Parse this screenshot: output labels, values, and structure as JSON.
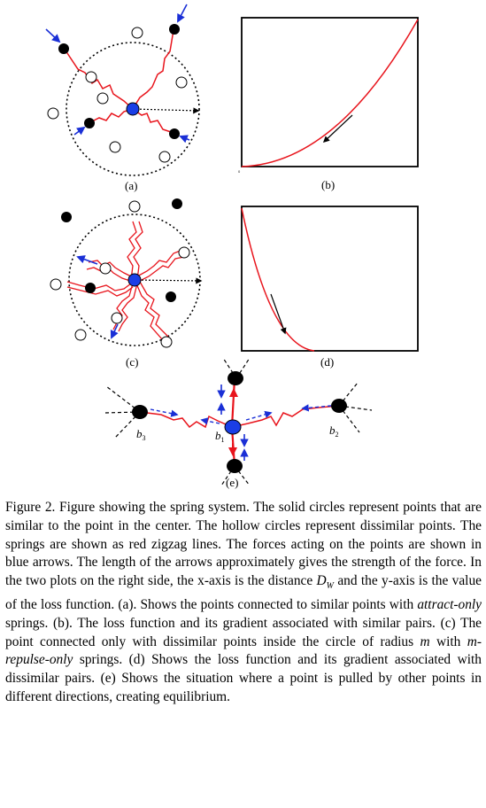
{
  "panels": {
    "a": "(a)",
    "b": "(b)",
    "c": "(c)",
    "d": "(d)",
    "e": "(e)"
  },
  "plot_origin_label": "0",
  "points": {
    "b1_main": "b",
    "b1_sub": "1",
    "b2_main": "b",
    "b2_sub": "2",
    "b3_main": "b",
    "b3_sub": "3"
  },
  "colors": {
    "spring": "#e8141c",
    "force_arrow": "#1a2fd6",
    "center_point": "#1a3ee6",
    "similar_point": "#000000",
    "dissimilar_point": "#ffffff"
  },
  "caption": {
    "p1": "Figure 2. Figure showing the spring system. The solid circles represent points that are similar to the point in the center. The hollow circles represent dissimilar points. The springs are shown as red zigzag lines. The forces acting on the points are shown in blue arrows. The length of the arrows approximately gives the strength of the force. In the two plots on the right side, the x-axis is the distance ",
    "dw_main": "D",
    "dw_sub": "W",
    "p2": " and the y-axis is the value of the loss function. (a). Shows the points connected to similar points with ",
    "attract": "attract-only",
    "p3": " springs. (b). The loss function and its gradient associated with similar pairs. (c) The point connected only with dissimilar points inside the circle of radius ",
    "m": "m",
    "p4": " with ",
    "repulse": "m-repulse-only",
    "p5": " springs. (d) Shows the loss function and its gradient associated with dissimilar pairs. (e) Shows the situation where a point is pulled by other points in different directions, creating equilibrium."
  }
}
